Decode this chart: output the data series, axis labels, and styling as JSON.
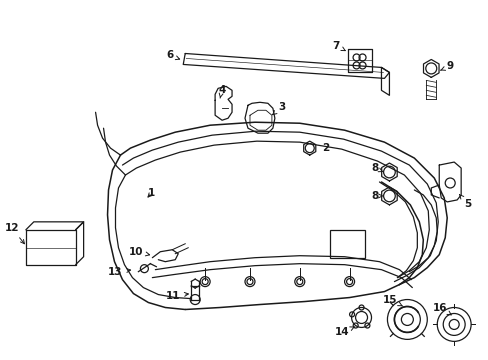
{
  "title": "",
  "bg_color": "#ffffff",
  "line_color": "#1a1a1a",
  "figsize": [
    4.89,
    3.6
  ],
  "dpi": 100
}
